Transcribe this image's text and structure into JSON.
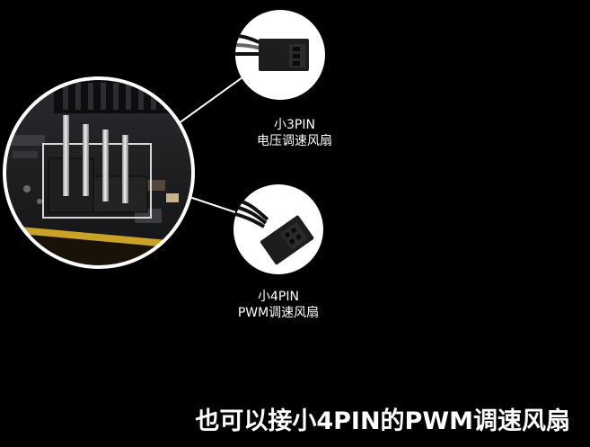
{
  "callouts": [
    {
      "line1": "小3PIN",
      "line2": "电压调速风扇"
    },
    {
      "line1": "小4PIN",
      "line2": "PWM调速风扇"
    }
  ],
  "subtitle": "也可以接小4PIN的PWM调速风扇",
  "colors": {
    "background": "#000000",
    "text": "#ffffff",
    "pcb": "#1b1c1e",
    "pcb_edge": "#c9a227",
    "pin": "#d9d9d9",
    "connector": "#1e1e1e"
  }
}
